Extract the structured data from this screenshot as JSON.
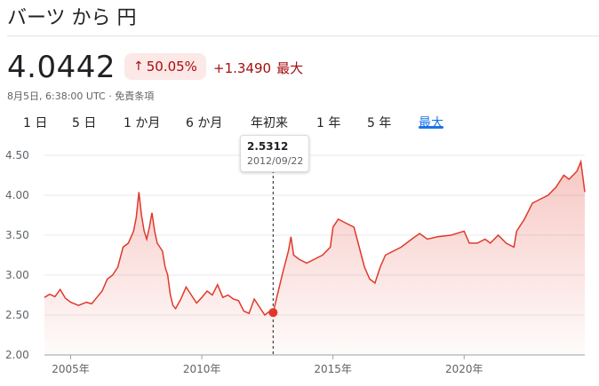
{
  "header": {
    "title": "バーツ から 円",
    "price": "4.0442",
    "change_percent": "50.05%",
    "change_arrow_icon": "arrow-up-icon",
    "change_abs": "+1.3490",
    "change_period": "最大",
    "subline": "8月5日, 6:38:00 UTC · 免責条項"
  },
  "tabs": [
    {
      "label": "1 日"
    },
    {
      "label": "5 日"
    },
    {
      "label": "1 か月"
    },
    {
      "label": "6 か月"
    },
    {
      "label": "年初来"
    },
    {
      "label": "1 年"
    },
    {
      "label": "5 年"
    },
    {
      "label": "最大"
    }
  ],
  "active_tab": "最大",
  "tooltip": {
    "value": "2.5312",
    "date": "2012/09/22"
  },
  "colors": {
    "line": "#e0392b",
    "accent": "#1a73e8",
    "negative_bg": "#fce8e6",
    "negative_text": "#a50e0e"
  },
  "chart_data": {
    "type": "area",
    "y_ticks": [
      "4.50",
      "4.00",
      "3.50",
      "3.00",
      "2.50",
      "2.00"
    ],
    "x_ticks": [
      "2005年",
      "2010年",
      "2015年",
      "2020年"
    ],
    "x_tick_years": [
      2005,
      2010,
      2015,
      2020
    ],
    "ylim": [
      2.0,
      4.5
    ],
    "xlim": [
      2004.0,
      2024.6
    ],
    "grid": true,
    "highlight": {
      "x": 2012.72,
      "y": 2.5312
    },
    "points": [
      [
        2004.0,
        2.72
      ],
      [
        2004.2,
        2.76
      ],
      [
        2004.4,
        2.73
      ],
      [
        2004.6,
        2.82
      ],
      [
        2004.8,
        2.71
      ],
      [
        2005.0,
        2.66
      ],
      [
        2005.3,
        2.62
      ],
      [
        2005.6,
        2.66
      ],
      [
        2005.8,
        2.64
      ],
      [
        2006.0,
        2.72
      ],
      [
        2006.2,
        2.8
      ],
      [
        2006.4,
        2.95
      ],
      [
        2006.6,
        3.0
      ],
      [
        2006.8,
        3.1
      ],
      [
        2007.0,
        3.35
      ],
      [
        2007.2,
        3.4
      ],
      [
        2007.4,
        3.55
      ],
      [
        2007.5,
        3.72
      ],
      [
        2007.6,
        4.04
      ],
      [
        2007.7,
        3.75
      ],
      [
        2007.8,
        3.55
      ],
      [
        2007.9,
        3.45
      ],
      [
        2008.0,
        3.6
      ],
      [
        2008.1,
        3.78
      ],
      [
        2008.2,
        3.55
      ],
      [
        2008.3,
        3.4
      ],
      [
        2008.4,
        3.35
      ],
      [
        2008.5,
        3.3
      ],
      [
        2008.6,
        3.1
      ],
      [
        2008.7,
        3.0
      ],
      [
        2008.8,
        2.75
      ],
      [
        2008.9,
        2.62
      ],
      [
        2009.0,
        2.58
      ],
      [
        2009.2,
        2.7
      ],
      [
        2009.4,
        2.85
      ],
      [
        2009.6,
        2.75
      ],
      [
        2009.8,
        2.65
      ],
      [
        2010.0,
        2.72
      ],
      [
        2010.2,
        2.8
      ],
      [
        2010.4,
        2.75
      ],
      [
        2010.6,
        2.88
      ],
      [
        2010.8,
        2.72
      ],
      [
        2011.0,
        2.75
      ],
      [
        2011.2,
        2.7
      ],
      [
        2011.4,
        2.68
      ],
      [
        2011.6,
        2.55
      ],
      [
        2011.8,
        2.52
      ],
      [
        2012.0,
        2.7
      ],
      [
        2012.2,
        2.6
      ],
      [
        2012.4,
        2.5
      ],
      [
        2012.6,
        2.55
      ],
      [
        2012.72,
        2.53
      ],
      [
        2012.9,
        2.78
      ],
      [
        2013.1,
        3.05
      ],
      [
        2013.3,
        3.3
      ],
      [
        2013.4,
        3.48
      ],
      [
        2013.5,
        3.25
      ],
      [
        2013.7,
        3.2
      ],
      [
        2014.0,
        3.15
      ],
      [
        2014.3,
        3.2
      ],
      [
        2014.6,
        3.25
      ],
      [
        2014.9,
        3.35
      ],
      [
        2015.0,
        3.6
      ],
      [
        2015.2,
        3.7
      ],
      [
        2015.5,
        3.65
      ],
      [
        2015.8,
        3.6
      ],
      [
        2016.0,
        3.35
      ],
      [
        2016.2,
        3.1
      ],
      [
        2016.4,
        2.95
      ],
      [
        2016.6,
        2.9
      ],
      [
        2016.8,
        3.1
      ],
      [
        2017.0,
        3.25
      ],
      [
        2017.3,
        3.3
      ],
      [
        2017.6,
        3.35
      ],
      [
        2018.0,
        3.45
      ],
      [
        2018.3,
        3.52
      ],
      [
        2018.6,
        3.45
      ],
      [
        2019.0,
        3.48
      ],
      [
        2019.5,
        3.5
      ],
      [
        2020.0,
        3.55
      ],
      [
        2020.2,
        3.4
      ],
      [
        2020.5,
        3.4
      ],
      [
        2020.8,
        3.45
      ],
      [
        2021.0,
        3.4
      ],
      [
        2021.3,
        3.5
      ],
      [
        2021.6,
        3.4
      ],
      [
        2021.9,
        3.35
      ],
      [
        2022.0,
        3.55
      ],
      [
        2022.3,
        3.7
      ],
      [
        2022.6,
        3.9
      ],
      [
        2022.9,
        3.95
      ],
      [
        2023.2,
        4.0
      ],
      [
        2023.5,
        4.1
      ],
      [
        2023.8,
        4.25
      ],
      [
        2024.0,
        4.2
      ],
      [
        2024.3,
        4.3
      ],
      [
        2024.45,
        4.42
      ],
      [
        2024.6,
        4.04
      ]
    ]
  }
}
